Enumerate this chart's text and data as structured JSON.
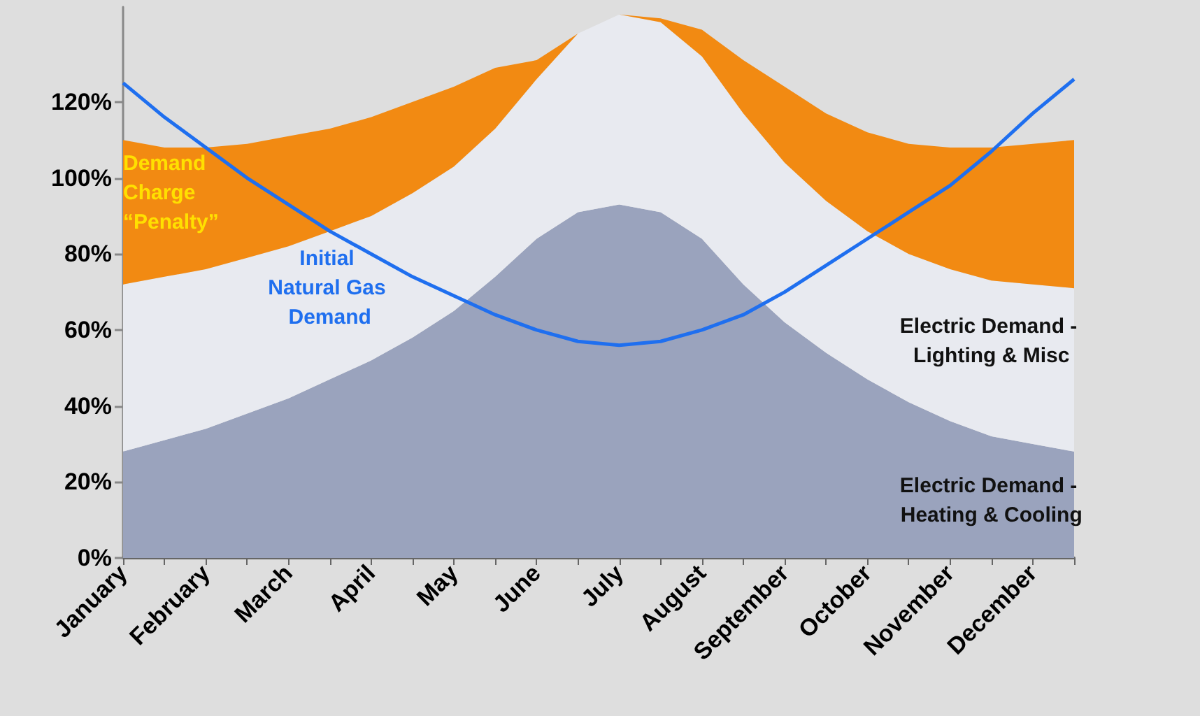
{
  "chart_data": {
    "type": "area",
    "stacked": true,
    "legend": false,
    "grid": false,
    "marker": "none",
    "categories": [
      "January",
      null,
      "February",
      null,
      "March",
      null,
      "April",
      null,
      "May",
      null,
      "June",
      null,
      "July",
      null,
      "August",
      null,
      "September",
      null,
      "October",
      null,
      "November",
      null,
      "December",
      null
    ],
    "ylim": [
      0,
      145
    ],
    "yticks": [
      {
        "value": 0,
        "label": "0%"
      },
      {
        "value": 20,
        "label": "20%"
      },
      {
        "value": 40,
        "label": "40%"
      },
      {
        "value": 60,
        "label": "60%"
      },
      {
        "value": 80,
        "label": "80%"
      },
      {
        "value": 100,
        "label": "100%"
      },
      {
        "value": 120,
        "label": "120%"
      }
    ],
    "series": [
      {
        "name": "Electric Demand - Heating & Cooling",
        "color": "#9aa3bd",
        "values": [
          28,
          31,
          34,
          38,
          42,
          47,
          52,
          58,
          65,
          74,
          84,
          91,
          93,
          91,
          84,
          72,
          62,
          54,
          47,
          41,
          36,
          32,
          30,
          28
        ]
      },
      {
        "name": "Electric Demand - Lighting & Misc",
        "color": "#e8eaf0",
        "values": [
          44,
          43,
          42,
          41,
          40,
          39,
          38,
          38,
          38,
          39,
          42,
          47,
          50,
          50,
          48,
          45,
          42,
          40,
          39,
          39,
          40,
          41,
          42,
          43
        ]
      },
      {
        "name": "Demand Charge “Penalty”",
        "color": "#f28a12",
        "values": [
          38,
          34,
          32,
          30,
          29,
          27,
          26,
          24,
          21,
          16,
          5,
          0,
          0,
          1,
          7,
          14,
          20,
          23,
          26,
          29,
          32,
          35,
          37,
          39
        ]
      },
      {
        "name": "Initial Natural Gas Demand",
        "type": "line",
        "color": "#1f6fef",
        "values": [
          125,
          116,
          108,
          100,
          93,
          86,
          80,
          74,
          69,
          64,
          60,
          57,
          56,
          57,
          60,
          64,
          70,
          77,
          84,
          91,
          98,
          107,
          117,
          126
        ]
      }
    ]
  }
}
